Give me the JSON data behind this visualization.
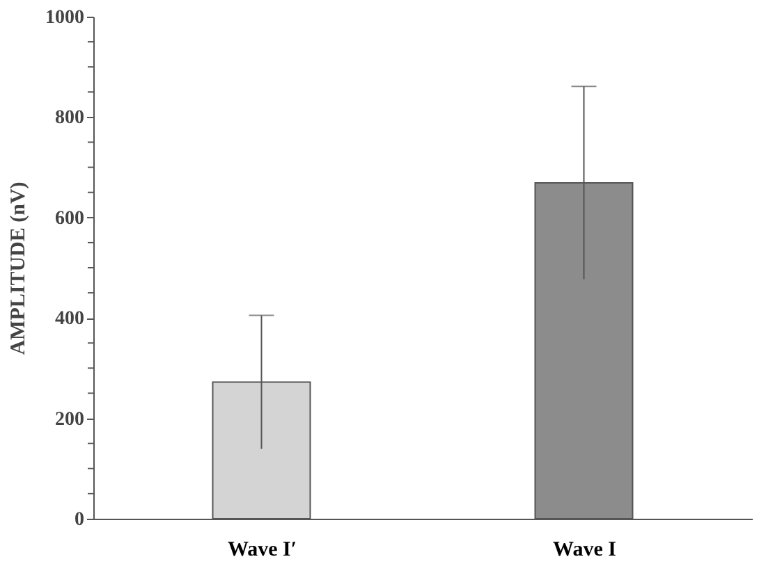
{
  "chart_data": {
    "type": "bar",
    "ylabel": "AMPLITUDE  (nV)",
    "categories": [
      "Wave I′",
      "Wave I"
    ],
    "values": [
      272,
      669
    ],
    "errors": [
      133,
      192
    ],
    "colors": [
      "#d4d4d4",
      "#8c8c8c"
    ],
    "ylim": [
      0,
      1000
    ],
    "yticks": [
      0,
      {
        "value": 50,
        "label": null
      },
      {
        "value": 100,
        "label": null
      },
      {
        "value": 150,
        "label": null
      },
      200,
      {
        "value": 250,
        "label": null
      },
      {
        "value": 300,
        "label": null
      },
      {
        "value": 350,
        "label": null
      },
      400,
      {
        "value": 450,
        "label": null
      },
      {
        "value": 500,
        "label": null
      },
      {
        "value": 550,
        "label": null
      },
      600,
      {
        "value": 650,
        "label": null
      },
      {
        "value": 700,
        "label": null
      },
      {
        "value": 750,
        "label": null
      },
      800,
      {
        "value": 850,
        "label": null
      },
      {
        "value": 900,
        "label": null
      },
      {
        "value": 950,
        "label": null
      },
      1000
    ],
    "grid": false
  }
}
